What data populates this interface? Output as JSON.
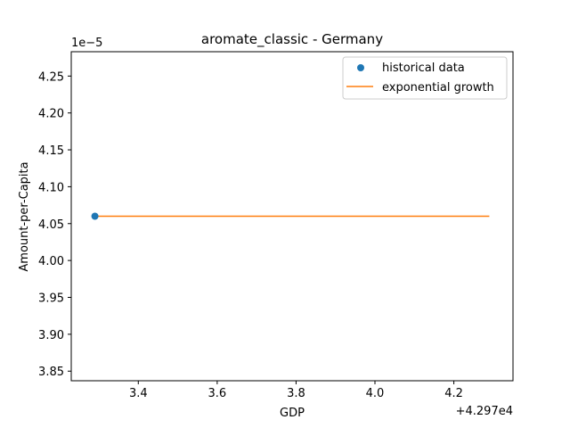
{
  "chart_data": {
    "type": "line",
    "title": "aromate_classic - Germany",
    "xlabel": "GDP",
    "ylabel": "Amount-per-Capita",
    "x_offset_text": "+4.297e4",
    "y_scale_text": "1e−5",
    "xlim": [
      3.23,
      4.35
    ],
    "ylim": [
      3.837,
      4.283
    ],
    "x_ticks": [
      3.4,
      3.6,
      3.8,
      4.0,
      4.2
    ],
    "x_tick_labels": [
      "3.4",
      "3.6",
      "3.8",
      "4.0",
      "4.2"
    ],
    "y_ticks": [
      3.85,
      3.9,
      3.95,
      4.0,
      4.05,
      4.1,
      4.15,
      4.2,
      4.25
    ],
    "y_tick_labels": [
      "3.85",
      "3.90",
      "3.95",
      "4.00",
      "4.05",
      "4.10",
      "4.15",
      "4.20",
      "4.25"
    ],
    "grid": false,
    "legend_position": "top-right",
    "series": [
      {
        "name": "historical data",
        "kind": "scatter",
        "color": "#1f77b4",
        "points": [
          {
            "x": 3.29,
            "y": 4.06
          }
        ]
      },
      {
        "name": "exponential growth",
        "kind": "line",
        "color": "#ff7f0e",
        "points": [
          {
            "x": 3.29,
            "y": 4.06
          },
          {
            "x": 4.29,
            "y": 4.06
          }
        ]
      }
    ]
  }
}
